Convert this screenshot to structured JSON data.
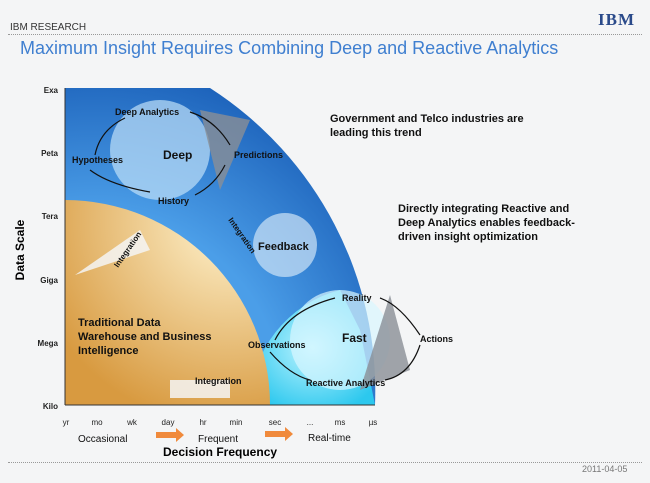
{
  "header": {
    "section": "IBM RESEARCH",
    "logo": "IBM",
    "title": "Maximum Insight Requires Combining Deep and Reactive Analytics",
    "date": "2011-04-05"
  },
  "notes": [
    "Government and Telco industries are leading this trend",
    "Directly integrating Reactive and Deep Analytics enables feedback-driven insight optimization"
  ],
  "diagram": {
    "y_axis_label": "Data Scale",
    "y_ticks": [
      "Exa",
      "Peta",
      "Tera",
      "Giga",
      "Mega",
      "Kilo"
    ],
    "x_ticks": [
      "yr",
      "mo",
      "wk",
      "day",
      "hr",
      "min",
      "sec",
      "...",
      "ms",
      "µs"
    ],
    "x_axis_label": "Decision Frequency",
    "x_stages": [
      "Occasional",
      "Frequent",
      "Real-time"
    ],
    "deep": {
      "title": "Deep Analytics",
      "center": "Deep",
      "items": [
        "Hypotheses",
        "Predictions",
        "History"
      ]
    },
    "feedback": "Feedback",
    "fast": {
      "title": "Reactive Analytics",
      "center": "Fast",
      "items": [
        "Reality",
        "Observations",
        "Actions"
      ]
    },
    "integration": [
      "Integration",
      "Integration",
      "Integration"
    ],
    "traditional": "Traditional Data Warehouse and Business Intelligence",
    "colors": {
      "deep_blue": "#1f6fc8",
      "cyan": "#3ad0f0",
      "yellow": "#e8b860",
      "orange_arrow": "#f08a3c",
      "title": "#3f7fd0"
    }
  }
}
